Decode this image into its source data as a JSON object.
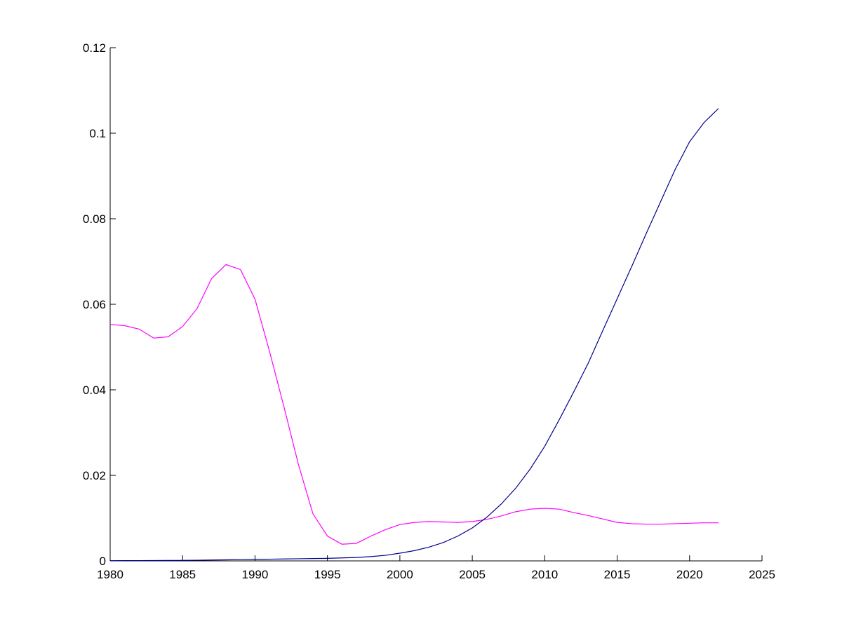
{
  "chart_data": {
    "type": "line",
    "x": [
      1980,
      1981,
      1982,
      1983,
      1984,
      1985,
      1986,
      1987,
      1988,
      1989,
      1990,
      1991,
      1992,
      1993,
      1994,
      1995,
      1996,
      1997,
      1998,
      1999,
      2000,
      2001,
      2002,
      2003,
      2004,
      2005,
      2006,
      2007,
      2008,
      2009,
      2010,
      2011,
      2012,
      2013,
      2014,
      2015,
      2016,
      2017,
      2018,
      2019,
      2020,
      2021,
      2022
    ],
    "series": [
      {
        "color": "#ff00ff",
        "values": [
          0.0553,
          0.055,
          0.0542,
          0.0521,
          0.0524,
          0.0548,
          0.059,
          0.066,
          0.0693,
          0.0681,
          0.0612,
          0.049,
          0.036,
          0.0225,
          0.011,
          0.0058,
          0.0039,
          0.0041,
          0.0058,
          0.0073,
          0.0085,
          0.009,
          0.0092,
          0.0091,
          0.009,
          0.0092,
          0.0097,
          0.0105,
          0.0115,
          0.0121,
          0.0123,
          0.0121,
          0.0113,
          0.0106,
          0.0098,
          0.009,
          0.0087,
          0.0086,
          0.0086,
          0.0087,
          0.0088,
          0.0089,
          0.0089
        ]
      },
      {
        "color": "#00008b",
        "values": [
          5e-05,
          6e-05,
          7e-05,
          8e-05,
          0.0001,
          0.00012,
          0.00015,
          0.0002,
          0.00025,
          0.0003,
          0.00035,
          0.0004,
          0.00045,
          0.0005,
          0.00055,
          0.0006,
          0.0007,
          0.0008,
          0.001,
          0.0013,
          0.0018,
          0.0024,
          0.0032,
          0.0043,
          0.0058,
          0.0077,
          0.0102,
          0.0133,
          0.017,
          0.0215,
          0.0268,
          0.033,
          0.0395,
          0.0462,
          0.0538,
          0.0613,
          0.0688,
          0.0765,
          0.084,
          0.0915,
          0.098,
          0.1025,
          0.1058
        ]
      }
    ],
    "xlim": [
      1980,
      2025
    ],
    "xticks": [
      1980,
      1985,
      1990,
      1995,
      2000,
      2005,
      2010,
      2015,
      2020,
      2025
    ],
    "ylim": [
      0,
      0.12
    ],
    "yticks": [
      0,
      0.02,
      0.04,
      0.06,
      0.08,
      0.1,
      0.12
    ]
  }
}
